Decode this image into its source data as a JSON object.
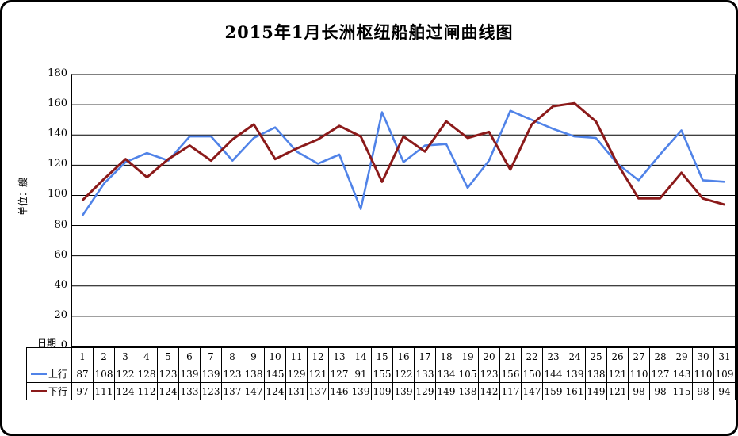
{
  "title": "2015年1月长洲枢纽船舶过闸曲线图",
  "y_axis": {
    "unit_label": "单位：艘",
    "ticks": [
      180,
      160,
      140,
      120,
      100,
      80,
      60,
      40,
      20,
      0
    ]
  },
  "x_axis": {
    "label": "日期"
  },
  "colors": {
    "upstream_line": "#5083E8",
    "downstream_line": "#8B1A1A",
    "gridline": "#000000",
    "plot_top_border": "#808080"
  },
  "chart_data": {
    "type": "line",
    "title": "2015年1月长洲枢纽船舶过闸曲线图",
    "xlabel": "日期",
    "ylabel": "单位：艘",
    "ylim": [
      0,
      180
    ],
    "ytick_step": 20,
    "grid": "horizontal",
    "legend_position": "left-of-data-table",
    "categories": [
      1,
      2,
      3,
      4,
      5,
      6,
      7,
      8,
      9,
      10,
      11,
      12,
      13,
      14,
      15,
      16,
      17,
      18,
      19,
      20,
      21,
      22,
      23,
      24,
      25,
      26,
      27,
      28,
      29,
      30,
      31
    ],
    "series": [
      {
        "name": "上行",
        "color": "#5083E8",
        "values": [
          87,
          108,
          122,
          128,
          123,
          139,
          139,
          123,
          138,
          145,
          129,
          121,
          127,
          91,
          155,
          122,
          133,
          134,
          105,
          123,
          156,
          150,
          144,
          139,
          138,
          121,
          110,
          127,
          143,
          110,
          109
        ]
      },
      {
        "name": "下行",
        "color": "#8B1A1A",
        "values": [
          97,
          111,
          124,
          112,
          124,
          133,
          123,
          137,
          147,
          124,
          131,
          137,
          146,
          139,
          109,
          139,
          129,
          149,
          138,
          142,
          117,
          147,
          159,
          161,
          149,
          121,
          98,
          98,
          115,
          98,
          94
        ]
      }
    ]
  }
}
